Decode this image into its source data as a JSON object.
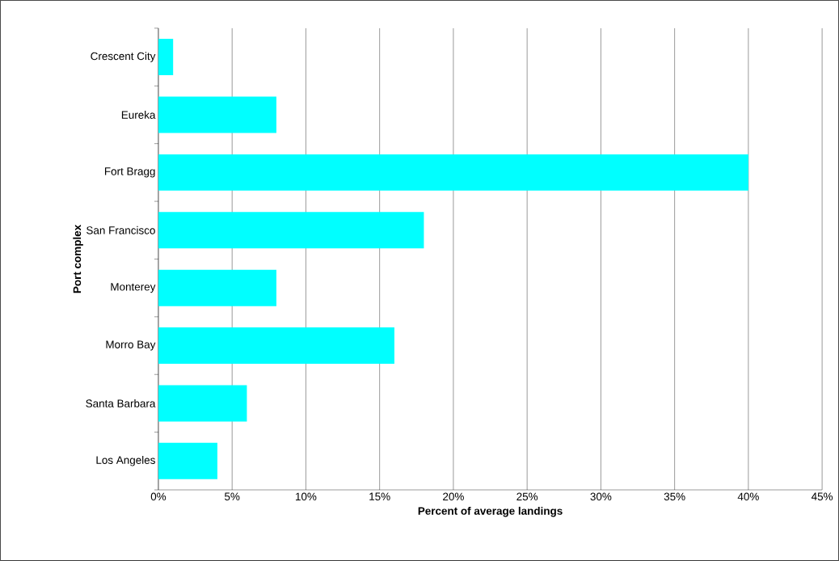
{
  "chart_data": {
    "type": "bar",
    "orientation": "horizontal",
    "xlabel": "Percent of average landings",
    "ylabel": "Port complex",
    "categories": [
      "Crescent City",
      "Eureka",
      "Fort Bragg",
      "San Francisco",
      "Monterey",
      "Morro Bay",
      "Santa Barbara",
      "Los Angeles"
    ],
    "values": [
      1,
      8,
      40,
      18,
      8,
      16,
      6,
      4
    ],
    "color": "#00ffff",
    "xlim": [
      0,
      45
    ],
    "xticks": [
      {
        "value": 0,
        "label": "0%"
      },
      {
        "value": 5,
        "label": "5%"
      },
      {
        "value": 10,
        "label": "10%"
      },
      {
        "value": 15,
        "label": "15%"
      },
      {
        "value": 20,
        "label": "20%"
      },
      {
        "value": 25,
        "label": "25%"
      },
      {
        "value": 30,
        "label": "30%"
      },
      {
        "value": 35,
        "label": "35%"
      },
      {
        "value": 40,
        "label": "40%"
      },
      {
        "value": 45,
        "label": "45%"
      }
    ],
    "grid": "x"
  }
}
